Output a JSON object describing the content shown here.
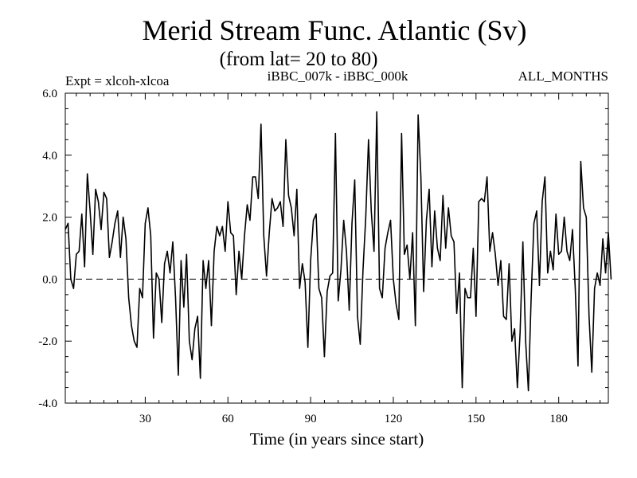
{
  "chart_data": {
    "type": "line",
    "title": "Merid Stream Func. Atlantic (Sv)",
    "subtitle": "(from lat= 20 to 80)",
    "left_label": "Expt = xlcoh-xlcoa",
    "center_label": "iBBC_007k - iBBC_000k",
    "right_label": "ALL_MONTHS",
    "xlabel": "Time (in years since start)",
    "ylabel": "",
    "xlim": [
      1,
      198
    ],
    "ylim": [
      -4,
      6
    ],
    "xticks": [
      30,
      60,
      90,
      120,
      150,
      180
    ],
    "xtick_labels": [
      "30",
      "60",
      "90",
      "120",
      "150",
      "180"
    ],
    "yticks": [
      -4,
      -2,
      0,
      2,
      4,
      6
    ],
    "ytick_labels": [
      "-4.0",
      "-2.0",
      "0.0",
      "2.0",
      "4.0",
      "6.0"
    ],
    "reference_line": 0,
    "series": [
      {
        "name": "iBBC_007k - iBBC_000k",
        "x_start": 1,
        "x_step": 1,
        "values": [
          1.6,
          1.8,
          0.0,
          -0.3,
          0.8,
          0.9,
          2.1,
          0.4,
          3.4,
          2.2,
          0.8,
          2.9,
          2.5,
          1.6,
          2.8,
          2.6,
          0.7,
          1.2,
          1.8,
          2.2,
          0.7,
          2.0,
          1.3,
          -0.6,
          -1.5,
          -2.0,
          -2.2,
          -0.3,
          -0.6,
          1.8,
          2.3,
          1.4,
          -1.9,
          0.2,
          0.0,
          -1.4,
          0.5,
          0.9,
          0.2,
          1.2,
          -0.6,
          -3.1,
          0.6,
          -0.9,
          0.8,
          -2.0,
          -2.6,
          -1.6,
          -1.2,
          -3.2,
          0.6,
          -0.3,
          0.6,
          -1.5,
          0.9,
          1.7,
          1.4,
          1.7,
          0.9,
          2.5,
          1.5,
          1.4,
          -0.5,
          0.9,
          0.0,
          1.4,
          2.4,
          1.9,
          3.3,
          3.3,
          2.6,
          5.0,
          1.4,
          0.1,
          1.5,
          2.6,
          2.2,
          2.3,
          2.5,
          1.7,
          4.5,
          2.7,
          2.3,
          1.4,
          2.9,
          -0.3,
          0.5,
          -0.1,
          -2.2,
          0.6,
          1.9,
          2.1,
          -0.3,
          -0.6,
          -2.5,
          -0.4,
          0.1,
          0.2,
          4.7,
          -0.7,
          0.3,
          1.9,
          0.9,
          -1.0,
          1.8,
          3.2,
          -1.2,
          -2.1,
          0.3,
          2.0,
          4.5,
          2.2,
          0.9,
          5.4,
          -0.3,
          -0.6,
          1.0,
          1.5,
          1.9,
          0.0,
          -0.8,
          -1.3,
          4.7,
          0.8,
          1.1,
          0.0,
          1.5,
          -1.5,
          5.3,
          3.3,
          -0.4,
          1.9,
          2.9,
          0.4,
          2.2,
          1.0,
          0.6,
          2.7,
          1.0,
          2.3,
          1.4,
          1.2,
          -1.1,
          0.2,
          -3.5,
          -0.3,
          -0.6,
          -0.6,
          1.0,
          -1.2,
          2.5,
          2.6,
          2.5,
          3.3,
          0.9,
          1.5,
          0.8,
          -0.2,
          0.6,
          -1.2,
          -1.3,
          0.5,
          -2.0,
          -1.6,
          -3.5,
          -1.7,
          1.2,
          -2.0,
          -3.6,
          -0.6,
          1.8,
          2.2,
          -0.2,
          2.5,
          3.3,
          0.2,
          0.9,
          0.3,
          2.1,
          0.8,
          0.9,
          2.0,
          0.9,
          0.6,
          1.6,
          -0.3,
          -2.8,
          3.8,
          2.3,
          2.0,
          -1.2,
          -3.0,
          -0.3,
          0.2,
          -0.2,
          1.3,
          0.2,
          1.5,
          0.0
        ]
      }
    ]
  }
}
